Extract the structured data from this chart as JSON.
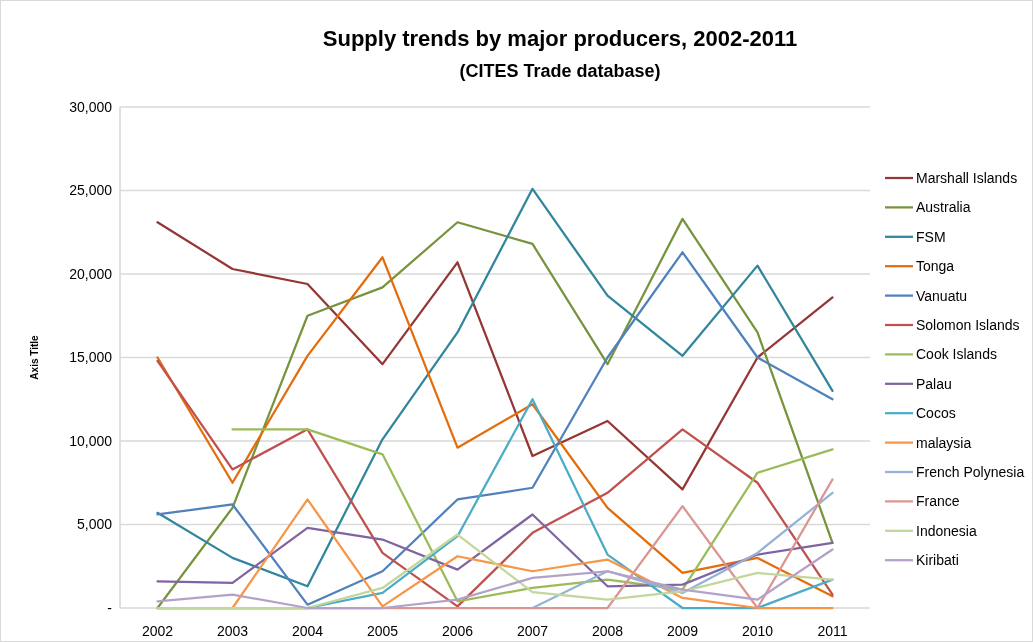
{
  "chart_data": {
    "type": "line",
    "title": "Supply trends by major producers, 2002-2011",
    "subtitle": "(CITES Trade database)",
    "ylabel": "Axis Title",
    "categories": [
      "2002",
      "2003",
      "2004",
      "2005",
      "2006",
      "2007",
      "2008",
      "2009",
      "2010",
      "2011"
    ],
    "ylim": [
      0,
      30000
    ],
    "yticks": [
      {
        "value": 0,
        "label": "-"
      },
      {
        "value": 5000,
        "label": "5,000"
      },
      {
        "value": 10000,
        "label": "10,000"
      },
      {
        "value": 15000,
        "label": "15,000"
      },
      {
        "value": 20000,
        "label": "20,000"
      },
      {
        "value": 25000,
        "label": "25,000"
      },
      {
        "value": 30000,
        "label": "30,000"
      }
    ],
    "grid": "y",
    "legend": "right",
    "marker": "none",
    "line_style": "solid",
    "series": [
      {
        "name": "Marshall Islands",
        "color": "#943634",
        "values": [
          23100,
          20300,
          19400,
          14600,
          20700,
          9100,
          11200,
          7100,
          15000,
          18600
        ]
      },
      {
        "name": "Australia",
        "color": "#77933c",
        "values": [
          0,
          6000,
          17500,
          19200,
          23100,
          21800,
          14600,
          23300,
          16500,
          3900
        ]
      },
      {
        "name": "FSM",
        "color": "#31859c",
        "values": [
          5700,
          3000,
          1300,
          10100,
          16500,
          25100,
          18700,
          15100,
          20500,
          13000
        ]
      },
      {
        "name": "Tonga",
        "color": "#e46c0a",
        "values": [
          15000,
          7500,
          15100,
          21000,
          9600,
          12200,
          6000,
          2100,
          3000,
          700
        ]
      },
      {
        "name": "Vanuatu",
        "color": "#4f81bd",
        "values": [
          5600,
          6200,
          200,
          2200,
          6500,
          7200,
          15000,
          21300,
          15000,
          12500
        ]
      },
      {
        "name": "Solomon Islands",
        "color": "#c0504d",
        "values": [
          14800,
          8300,
          10700,
          3300,
          100,
          4500,
          6900,
          10700,
          7500,
          800
        ]
      },
      {
        "name": "Cook Islands",
        "color": "#9bbb59",
        "values": [
          null,
          10700,
          10700,
          9200,
          400,
          1200,
          1700,
          1100,
          8100,
          9500
        ]
      },
      {
        "name": "Palau",
        "color": "#8064a2",
        "values": [
          1600,
          1500,
          4800,
          4100,
          2300,
          5600,
          1300,
          1400,
          3200,
          3900
        ]
      },
      {
        "name": "Cocos",
        "color": "#4bacc6",
        "values": [
          0,
          0,
          0,
          900,
          4300,
          12500,
          3200,
          0,
          0,
          1700
        ]
      },
      {
        "name": "malaysia",
        "color": "#f79646",
        "values": [
          null,
          0,
          6500,
          100,
          3100,
          2200,
          2900,
          600,
          0,
          0
        ]
      },
      {
        "name": "French Polynesia",
        "color": "#95b3d7",
        "values": [
          null,
          null,
          null,
          null,
          null,
          0,
          2200,
          900,
          3300,
          6900
        ]
      },
      {
        "name": "France",
        "color": "#d99694",
        "values": [
          0,
          0,
          0,
          0,
          0,
          0,
          0,
          6100,
          0,
          7700
        ]
      },
      {
        "name": "Indonesia",
        "color": "#c3d69b",
        "values": [
          0,
          0,
          0,
          1200,
          4400,
          950,
          500,
          1000,
          2100,
          1700
        ]
      },
      {
        "name": "Kiribati",
        "color": "#b3a2c7",
        "values": [
          400,
          800,
          0,
          0,
          500,
          1800,
          2200,
          1100,
          500,
          3500
        ]
      }
    ]
  }
}
